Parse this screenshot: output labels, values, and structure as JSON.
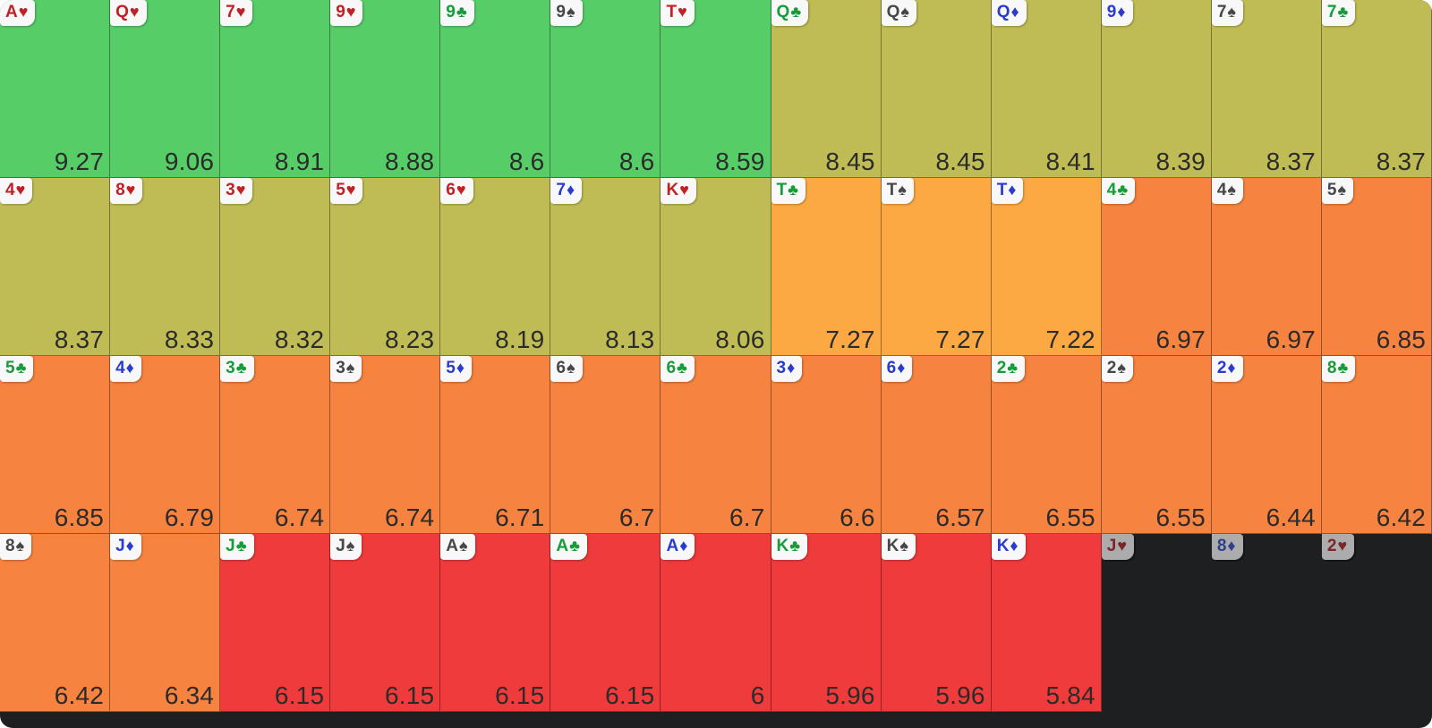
{
  "colors": {
    "green": "#57CD68",
    "olive": "#C0BC55",
    "orangeLight": "#FCA943",
    "orange": "#F6833F",
    "red": "#EF3B3B",
    "dead_bg": "#1E1F21",
    "chip_bg": "#F8F8F8",
    "chip_dead_bg": "#ACACAC",
    "value_text": "#2B2B2B",
    "suit_heart": "#C02126",
    "suit_diamond": "#2A3BCE",
    "suit_club": "#169C38",
    "suit_spade": "#47474A",
    "dead_heart": "#79272A",
    "dead_diamond": "#303F86"
  },
  "icons": {
    "heart": "♥",
    "diamond": "♦",
    "club": "♣",
    "spade": "♠"
  },
  "chart_data": {
    "type": "heatmap",
    "title": "",
    "layout": {
      "columns": 13,
      "rows": 4,
      "order": "cells sorted left-to-right, top-to-bottom by descending value",
      "grid": "13x4 card heatmap, value shown bottom-right of each cell, card chip top-left",
      "legend_position": "none",
      "gridlines": "1px dark cell borders"
    },
    "value_range": [
      5.84,
      9.27
    ],
    "dead_cards": [
      "Jh",
      "8d",
      "2h"
    ],
    "rows": [
      [
        {
          "card": "Ah",
          "rank": "A",
          "suit": "heart",
          "value": 9.27,
          "label": "9.27",
          "tier": "green"
        },
        {
          "card": "Qh",
          "rank": "Q",
          "suit": "heart",
          "value": 9.06,
          "label": "9.06",
          "tier": "green"
        },
        {
          "card": "7h",
          "rank": "7",
          "suit": "heart",
          "value": 8.91,
          "label": "8.91",
          "tier": "green"
        },
        {
          "card": "9h",
          "rank": "9",
          "suit": "heart",
          "value": 8.88,
          "label": "8.88",
          "tier": "green"
        },
        {
          "card": "9c",
          "rank": "9",
          "suit": "club",
          "value": 8.6,
          "label": "8.6",
          "tier": "green"
        },
        {
          "card": "9s",
          "rank": "9",
          "suit": "spade",
          "value": 8.6,
          "label": "8.6",
          "tier": "green"
        },
        {
          "card": "Th",
          "rank": "T",
          "suit": "heart",
          "value": 8.59,
          "label": "8.59",
          "tier": "green"
        },
        {
          "card": "Qc",
          "rank": "Q",
          "suit": "club",
          "value": 8.45,
          "label": "8.45",
          "tier": "olive"
        },
        {
          "card": "Qs",
          "rank": "Q",
          "suit": "spade",
          "value": 8.45,
          "label": "8.45",
          "tier": "olive"
        },
        {
          "card": "Qd",
          "rank": "Q",
          "suit": "diamond",
          "value": 8.41,
          "label": "8.41",
          "tier": "olive"
        },
        {
          "card": "9d",
          "rank": "9",
          "suit": "diamond",
          "value": 8.39,
          "label": "8.39",
          "tier": "olive"
        },
        {
          "card": "7s",
          "rank": "7",
          "suit": "spade",
          "value": 8.37,
          "label": "8.37",
          "tier": "olive"
        },
        {
          "card": "7c",
          "rank": "7",
          "suit": "club",
          "value": 8.37,
          "label": "8.37",
          "tier": "olive"
        }
      ],
      [
        {
          "card": "4h",
          "rank": "4",
          "suit": "heart",
          "value": 8.37,
          "label": "8.37",
          "tier": "olive"
        },
        {
          "card": "8h",
          "rank": "8",
          "suit": "heart",
          "value": 8.33,
          "label": "8.33",
          "tier": "olive"
        },
        {
          "card": "3h",
          "rank": "3",
          "suit": "heart",
          "value": 8.32,
          "label": "8.32",
          "tier": "olive"
        },
        {
          "card": "5h",
          "rank": "5",
          "suit": "heart",
          "value": 8.23,
          "label": "8.23",
          "tier": "olive"
        },
        {
          "card": "6h",
          "rank": "6",
          "suit": "heart",
          "value": 8.19,
          "label": "8.19",
          "tier": "olive"
        },
        {
          "card": "7d",
          "rank": "7",
          "suit": "diamond",
          "value": 8.13,
          "label": "8.13",
          "tier": "olive"
        },
        {
          "card": "Kh",
          "rank": "K",
          "suit": "heart",
          "value": 8.06,
          "label": "8.06",
          "tier": "olive"
        },
        {
          "card": "Tc",
          "rank": "T",
          "suit": "club",
          "value": 7.27,
          "label": "7.27",
          "tier": "orangeLight"
        },
        {
          "card": "Ts",
          "rank": "T",
          "suit": "spade",
          "value": 7.27,
          "label": "7.27",
          "tier": "orangeLight"
        },
        {
          "card": "Td",
          "rank": "T",
          "suit": "diamond",
          "value": 7.22,
          "label": "7.22",
          "tier": "orangeLight"
        },
        {
          "card": "4c",
          "rank": "4",
          "suit": "club",
          "value": 6.97,
          "label": "6.97",
          "tier": "orange"
        },
        {
          "card": "4s",
          "rank": "4",
          "suit": "spade",
          "value": 6.97,
          "label": "6.97",
          "tier": "orange"
        },
        {
          "card": "5s",
          "rank": "5",
          "suit": "spade",
          "value": 6.85,
          "label": "6.85",
          "tier": "orange"
        }
      ],
      [
        {
          "card": "5c",
          "rank": "5",
          "suit": "club",
          "value": 6.85,
          "label": "6.85",
          "tier": "orange"
        },
        {
          "card": "4d",
          "rank": "4",
          "suit": "diamond",
          "value": 6.79,
          "label": "6.79",
          "tier": "orange"
        },
        {
          "card": "3c",
          "rank": "3",
          "suit": "club",
          "value": 6.74,
          "label": "6.74",
          "tier": "orange"
        },
        {
          "card": "3s",
          "rank": "3",
          "suit": "spade",
          "value": 6.74,
          "label": "6.74",
          "tier": "orange"
        },
        {
          "card": "5d",
          "rank": "5",
          "suit": "diamond",
          "value": 6.71,
          "label": "6.71",
          "tier": "orange"
        },
        {
          "card": "6s",
          "rank": "6",
          "suit": "spade",
          "value": 6.7,
          "label": "6.7",
          "tier": "orange"
        },
        {
          "card": "6c",
          "rank": "6",
          "suit": "club",
          "value": 6.7,
          "label": "6.7",
          "tier": "orange"
        },
        {
          "card": "3d",
          "rank": "3",
          "suit": "diamond",
          "value": 6.6,
          "label": "6.6",
          "tier": "orange"
        },
        {
          "card": "6d",
          "rank": "6",
          "suit": "diamond",
          "value": 6.57,
          "label": "6.57",
          "tier": "orange"
        },
        {
          "card": "2c",
          "rank": "2",
          "suit": "club",
          "value": 6.55,
          "label": "6.55",
          "tier": "orange"
        },
        {
          "card": "2s",
          "rank": "2",
          "suit": "spade",
          "value": 6.55,
          "label": "6.55",
          "tier": "orange"
        },
        {
          "card": "2d",
          "rank": "2",
          "suit": "diamond",
          "value": 6.44,
          "label": "6.44",
          "tier": "orange"
        },
        {
          "card": "8c",
          "rank": "8",
          "suit": "club",
          "value": 6.42,
          "label": "6.42",
          "tier": "orange"
        }
      ],
      [
        {
          "card": "8s",
          "rank": "8",
          "suit": "spade",
          "value": 6.42,
          "label": "6.42",
          "tier": "orange"
        },
        {
          "card": "Jd",
          "rank": "J",
          "suit": "diamond",
          "value": 6.34,
          "label": "6.34",
          "tier": "orange"
        },
        {
          "card": "Jc",
          "rank": "J",
          "suit": "club",
          "value": 6.15,
          "label": "6.15",
          "tier": "red"
        },
        {
          "card": "Js",
          "rank": "J",
          "suit": "spade",
          "value": 6.15,
          "label": "6.15",
          "tier": "red"
        },
        {
          "card": "As",
          "rank": "A",
          "suit": "spade",
          "value": 6.15,
          "label": "6.15",
          "tier": "red"
        },
        {
          "card": "Ac",
          "rank": "A",
          "suit": "club",
          "value": 6.15,
          "label": "6.15",
          "tier": "red"
        },
        {
          "card": "Ad",
          "rank": "A",
          "suit": "diamond",
          "value": 6,
          "label": "6",
          "tier": "red"
        },
        {
          "card": "Kc",
          "rank": "K",
          "suit": "club",
          "value": 5.96,
          "label": "5.96",
          "tier": "red"
        },
        {
          "card": "Ks",
          "rank": "K",
          "suit": "spade",
          "value": 5.96,
          "label": "5.96",
          "tier": "red"
        },
        {
          "card": "Kd",
          "rank": "K",
          "suit": "diamond",
          "value": 5.84,
          "label": "5.84",
          "tier": "red"
        },
        {
          "card": "Jh",
          "rank": "J",
          "suit": "heart",
          "value": null,
          "label": "",
          "tier": "dead"
        },
        {
          "card": "8d",
          "rank": "8",
          "suit": "diamond",
          "value": null,
          "label": "",
          "tier": "dead"
        },
        {
          "card": "2h",
          "rank": "2",
          "suit": "heart",
          "value": null,
          "label": "",
          "tier": "dead"
        }
      ]
    ]
  }
}
